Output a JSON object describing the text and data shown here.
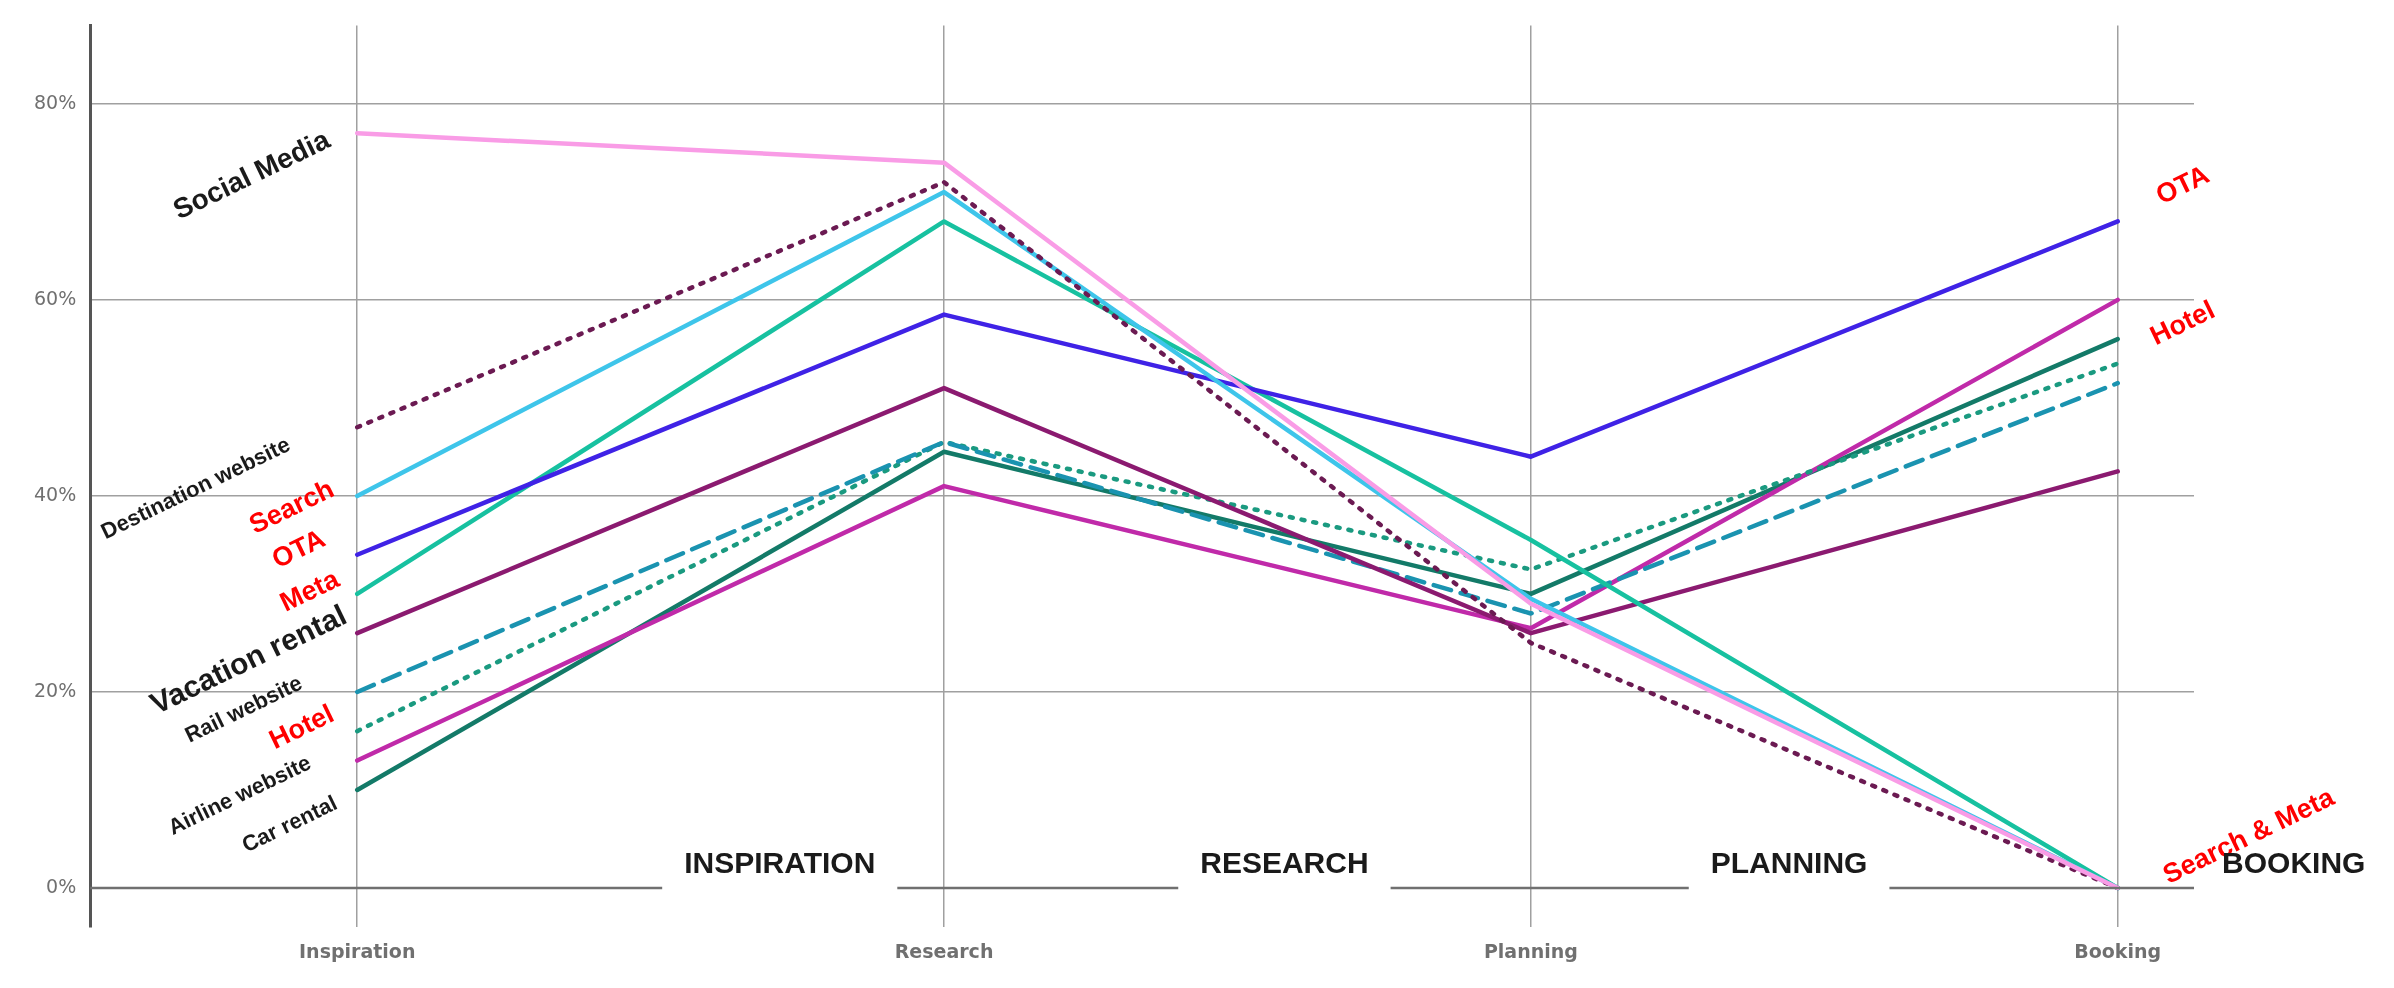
{
  "chart_data": {
    "type": "line",
    "categories": [
      "Inspiration",
      "Research",
      "Planning",
      "Booking"
    ],
    "series": [
      {
        "color": "#f99ce6",
        "values": [
          77,
          74,
          29,
          0
        ]
      },
      {
        "color": "#6b1a52",
        "line_style": "dotted",
        "values": [
          47,
          72,
          25,
          0
        ]
      },
      {
        "color": "#3ec5ea",
        "values": [
          40,
          71,
          29.5,
          0
        ]
      },
      {
        "color": "#3f22e6",
        "values": [
          34,
          58.5,
          44,
          68
        ]
      },
      {
        "color": "#17c1a0",
        "values": [
          30,
          68,
          35.5,
          0
        ]
      },
      {
        "color": "#8b1a70",
        "values": [
          26,
          51,
          26,
          42.5
        ]
      },
      {
        "color": "#1a93b0",
        "line_style": "dashed",
        "values": [
          20,
          45.5,
          28,
          51.5
        ]
      },
      {
        "color": "#1a9a80",
        "line_style": "dotted",
        "values": [
          16,
          45.5,
          32.5,
          53.5
        ]
      },
      {
        "color": "#c02aa9",
        "values": [
          13,
          41,
          26.5,
          60
        ]
      },
      {
        "color": "#137a68",
        "values": [
          10,
          44.5,
          30,
          56
        ]
      }
    ],
    "ylim": [
      -4,
      88
    ],
    "yticks": [
      {
        "value": 0,
        "label": "0%"
      },
      {
        "value": 20,
        "label": "20%"
      },
      {
        "value": 40,
        "label": "40%"
      },
      {
        "value": 60,
        "label": "60%"
      },
      {
        "value": 80,
        "label": "80%"
      }
    ],
    "grid": true,
    "legend": false,
    "line_style": "solid",
    "marker": "none",
    "annotations": [
      "Social Media",
      "Destination website",
      "Search",
      "OTA",
      "Meta",
      "Vacation rental",
      "Rail website",
      "Hotel",
      "Airline website",
      "Car rental",
      "OTA",
      "Hotel",
      "Search & Meta",
      "INSPIRATION",
      "RESEARCH",
      "PLANNING",
      "BOOKING"
    ]
  }
}
